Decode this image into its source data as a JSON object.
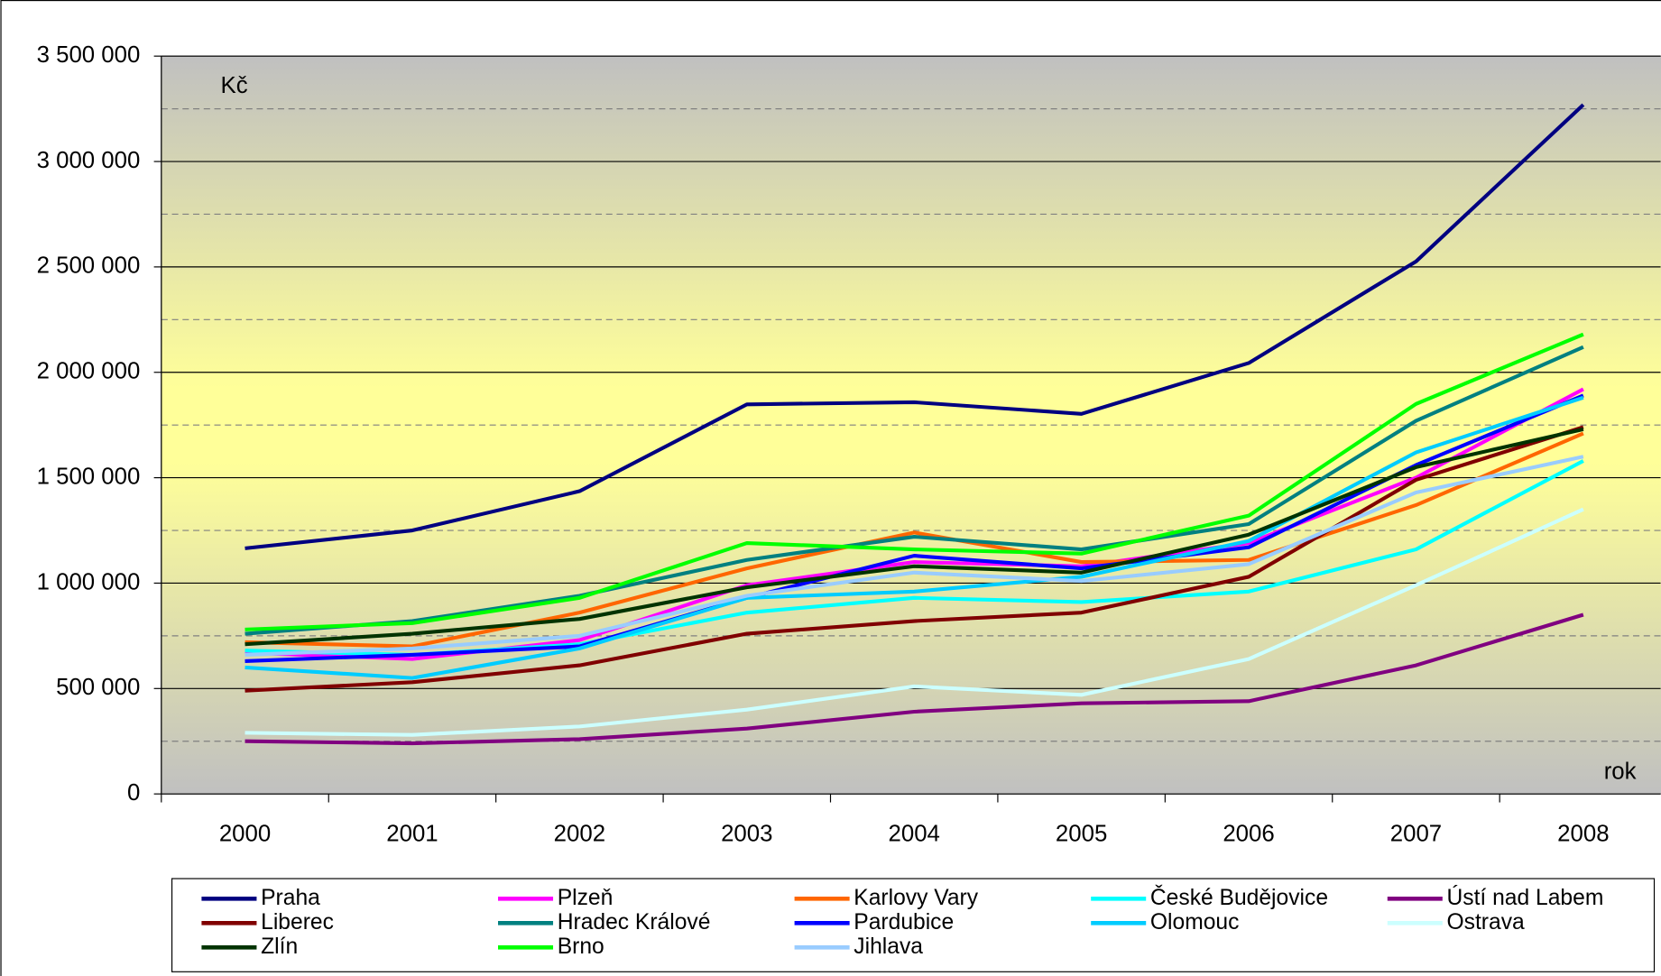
{
  "chart_data": {
    "type": "line",
    "y_label": "Kč",
    "x_label": "rok",
    "categories": [
      "2000",
      "2001",
      "2002",
      "2003",
      "2004",
      "2005",
      "2006",
      "2007",
      "2008"
    ],
    "ylim": [
      0,
      3500000
    ],
    "yticks": [
      0,
      {
        "value": 500000,
        "label": "500 000"
      },
      {
        "value": 1000000,
        "label": "1 000 000"
      },
      {
        "value": 1500000,
        "label": "1 500 000"
      },
      {
        "value": 2000000,
        "label": "2 000 000"
      },
      {
        "value": 2500000,
        "label": "2 500 000"
      },
      {
        "value": 3000000,
        "label": "3 000 000"
      },
      {
        "value": 3500000,
        "label": "3 500 000"
      }
    ],
    "y_minor_ticks": [
      250000,
      750000,
      1250000,
      1750000,
      2250000,
      2750000,
      3250000
    ],
    "grid": true,
    "legend": "bottom",
    "series": [
      {
        "name": "Praha",
        "color": "#000080",
        "values": [
          1165000,
          1250000,
          1436000,
          1848000,
          1858000,
          1803000,
          2044000,
          2526000,
          3269000
        ]
      },
      {
        "name": "Plzeň",
        "color": "#ff00ff",
        "values": [
          670000,
          640000,
          730000,
          990000,
          1100000,
          1080000,
          1190000,
          1500000,
          1920000
        ]
      },
      {
        "name": "Karlovy Vary",
        "color": "#ff6600",
        "values": [
          720000,
          700000,
          860000,
          1070000,
          1240000,
          1100000,
          1110000,
          1370000,
          1710000
        ]
      },
      {
        "name": "České Budějovice",
        "color": "#00ffff",
        "values": [
          680000,
          660000,
          710000,
          860000,
          930000,
          910000,
          960000,
          1160000,
          1580000
        ]
      },
      {
        "name": "Ústí nad Labem",
        "color": "#800080",
        "values": [
          250000,
          240000,
          260000,
          310000,
          390000,
          430000,
          440000,
          610000,
          850000
        ]
      },
      {
        "name": "Liberec",
        "color": "#800000",
        "values": [
          490000,
          530000,
          610000,
          760000,
          820000,
          860000,
          1030000,
          1490000,
          1740000
        ]
      },
      {
        "name": "Hradec Králové",
        "color": "#008080",
        "values": [
          760000,
          820000,
          940000,
          1110000,
          1220000,
          1160000,
          1280000,
          1770000,
          2120000
        ]
      },
      {
        "name": "Pardubice",
        "color": "#0000ff",
        "values": [
          630000,
          660000,
          700000,
          930000,
          1130000,
          1070000,
          1170000,
          1560000,
          1890000
        ]
      },
      {
        "name": "Olomouc",
        "color": "#00ccff",
        "values": [
          600000,
          550000,
          690000,
          930000,
          960000,
          1030000,
          1200000,
          1620000,
          1880000
        ]
      },
      {
        "name": "Ostrava",
        "color": "#ccffff",
        "values": [
          290000,
          280000,
          320000,
          400000,
          510000,
          470000,
          640000,
          990000,
          1350000
        ]
      },
      {
        "name": "Zlín",
        "color": "#003300",
        "values": [
          710000,
          760000,
          830000,
          980000,
          1080000,
          1050000,
          1230000,
          1550000,
          1730000
        ]
      },
      {
        "name": "Brno",
        "color": "#00ff00",
        "values": [
          780000,
          810000,
          930000,
          1190000,
          1160000,
          1140000,
          1320000,
          1850000,
          2180000
        ]
      },
      {
        "name": "Jihlava",
        "color": "#99ccff",
        "values": [
          660000,
          690000,
          750000,
          940000,
          1050000,
          1010000,
          1090000,
          1430000,
          1600000
        ]
      }
    ]
  }
}
